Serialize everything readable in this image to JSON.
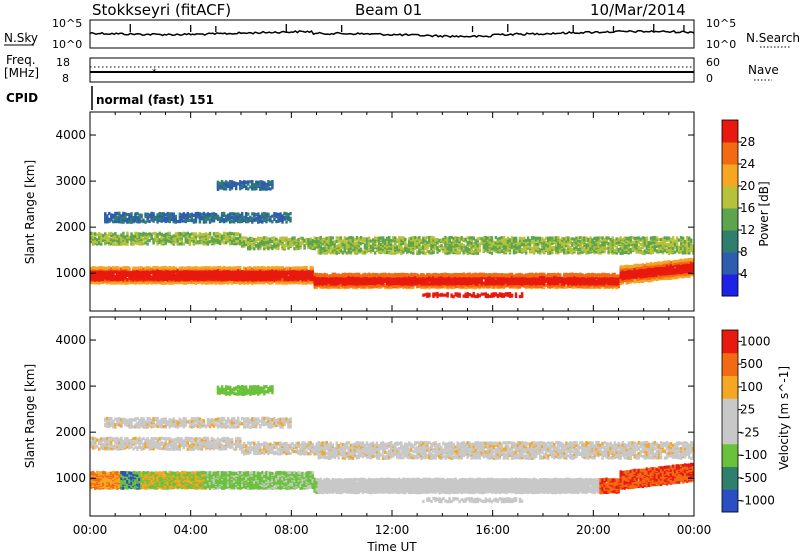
{
  "header": {
    "station": "Stokkseyri (fitACF)",
    "beam": "Beam 01",
    "date": "10/Mar/2014"
  },
  "top_panels": {
    "nsky_label": "N.Sky",
    "nsky_ticks": [
      "10^5",
      "10^0"
    ],
    "nsearch_ticks": [
      "10^5",
      "10^0"
    ],
    "nsearch_label": "N.Search",
    "freq_label": "Freq.",
    "freq_unit": "[MHz]",
    "freq_ticks": [
      "18",
      "8"
    ],
    "nave_ticks": [
      "60",
      "0"
    ],
    "nave_label": "Nave",
    "cpid_label": "CPID",
    "cpid_value": "normal (fast) 151"
  },
  "chart_data": [
    {
      "type": "heatmap",
      "name": "power",
      "ylabel": "Slant Range [km]",
      "xlabel": "Time UT",
      "ylim": [
        180,
        4500
      ],
      "xlim_hours": [
        0,
        24
      ],
      "y_ticks": [
        "1000",
        "2000",
        "3000",
        "4000"
      ],
      "x_ticks": [
        "00:00",
        "04:00",
        "08:00",
        "12:00",
        "16:00",
        "20:00",
        "00:00"
      ],
      "colorbar": {
        "label": "Power [dB]",
        "ticks": [
          "4",
          "8",
          "12",
          "16",
          "20",
          "24",
          "28"
        ],
        "colors": [
          "#1e22e6",
          "#2e5db0",
          "#2f7e6e",
          "#5da44f",
          "#b7c23a",
          "#f5a623",
          "#f26a12",
          "#e8190f"
        ]
      }
    },
    {
      "type": "heatmap",
      "name": "velocity",
      "ylabel": "Slant Range [km]",
      "xlabel": "Time UT",
      "ylim": [
        180,
        4500
      ],
      "xlim_hours": [
        0,
        24
      ],
      "y_ticks": [
        "1000",
        "2000",
        "3000",
        "4000"
      ],
      "x_ticks": [
        "00:00",
        "04:00",
        "08:00",
        "12:00",
        "16:00",
        "20:00",
        "00:00"
      ],
      "colorbar": {
        "label": "Velocity [m s^-1]",
        "ticks": [
          "1000",
          "500",
          "100",
          "25",
          "-25",
          "-100",
          "-500",
          "-1000"
        ],
        "colors": [
          "#2a4fc4",
          "#2f7e6e",
          "#6ac23a",
          "#c8c8c8",
          "#c8c8c8",
          "#f5a623",
          "#f26a12",
          "#e8190f"
        ]
      }
    }
  ]
}
